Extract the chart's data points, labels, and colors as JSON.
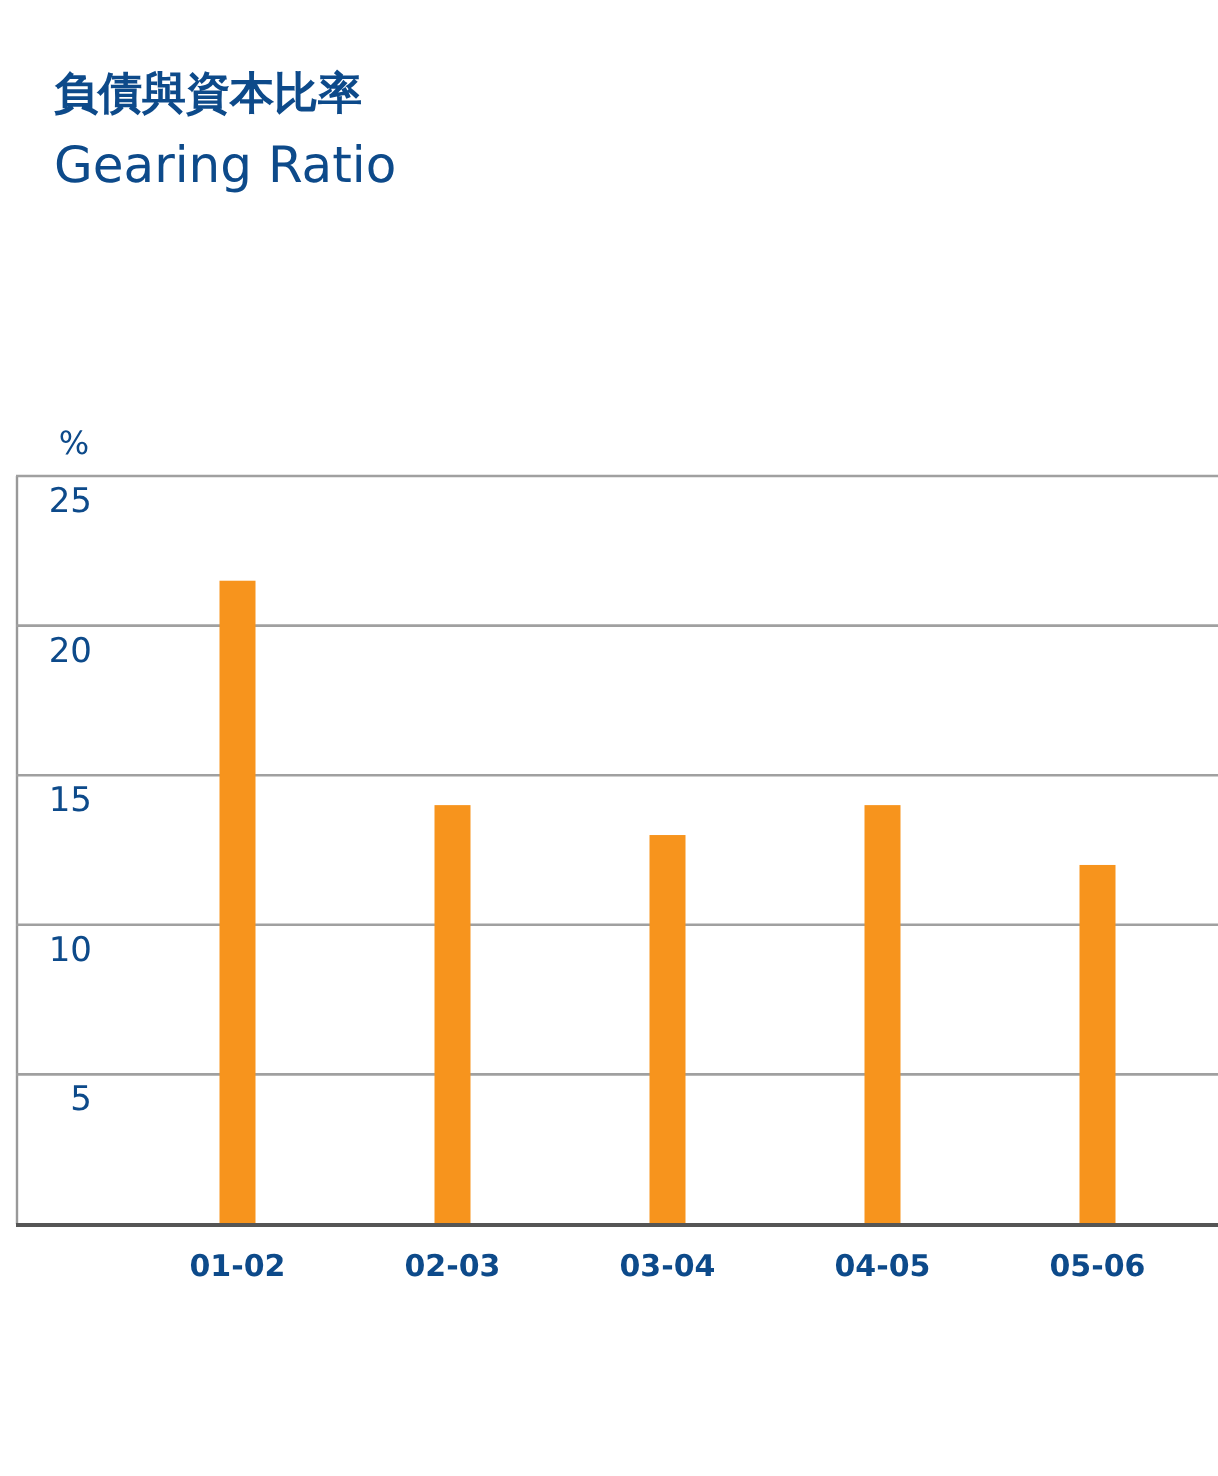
{
  "chart_data": {
    "type": "bar",
    "title": "負債與資本比率",
    "subtitle": "Gearing Ratio",
    "ylabel": "%",
    "categories": [
      "01-02",
      "02-03",
      "03-04",
      "04-05",
      "05-06"
    ],
    "values": [
      21.5,
      14,
      13,
      14,
      12
    ],
    "color": "#f7941d",
    "ylim": [
      0,
      25
    ],
    "yticks": [
      5,
      10,
      15,
      20,
      25
    ],
    "grid": "y"
  }
}
